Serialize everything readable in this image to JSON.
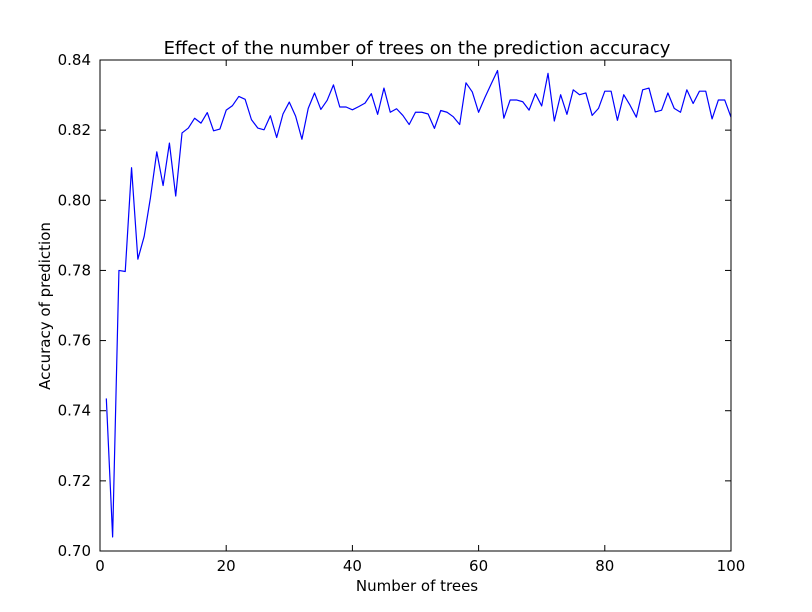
{
  "chart_data": {
    "type": "line",
    "title": "Effect of the number of trees on the prediction accuracy",
    "xlabel": "Number of trees",
    "ylabel": "Accuracy of prediction",
    "xlim": [
      0,
      100
    ],
    "ylim": [
      0.7,
      0.84
    ],
    "xticks": [
      "0",
      "20",
      "40",
      "60",
      "80",
      "100"
    ],
    "yticks": [
      "0.70",
      "0.72",
      "0.74",
      "0.76",
      "0.78",
      "0.80",
      "0.82",
      "0.84"
    ],
    "grid": false,
    "series": [
      {
        "color": "#0000ff",
        "x": [
          1,
          2,
          3,
          4,
          5,
          6,
          7,
          8,
          9,
          10,
          11,
          12,
          13,
          14,
          15,
          16,
          17,
          18,
          19,
          20,
          21,
          22,
          23,
          24,
          25,
          26,
          27,
          28,
          29,
          30,
          31,
          32,
          33,
          34,
          35,
          36,
          37,
          38,
          39,
          40,
          41,
          42,
          43,
          44,
          45,
          46,
          47,
          48,
          49,
          50,
          51,
          52,
          53,
          54,
          55,
          56,
          57,
          58,
          59,
          60,
          61,
          62,
          63,
          64,
          65,
          66,
          67,
          68,
          69,
          70,
          71,
          72,
          73,
          74,
          75,
          76,
          77,
          78,
          79,
          80,
          81,
          82,
          83,
          84,
          85,
          86,
          87,
          88,
          89,
          90,
          91,
          92,
          93,
          94,
          95,
          96,
          97,
          98,
          99,
          100
        ],
        "y": [
          0.7435,
          0.704,
          0.78,
          0.7797,
          0.8093,
          0.7832,
          0.7897,
          0.8008,
          0.8138,
          0.8042,
          0.8163,
          0.8012,
          0.8192,
          0.8206,
          0.8234,
          0.822,
          0.825,
          0.8198,
          0.8203,
          0.8257,
          0.827,
          0.8296,
          0.8288,
          0.823,
          0.8206,
          0.8201,
          0.8241,
          0.8179,
          0.8246,
          0.828,
          0.824,
          0.8174,
          0.8262,
          0.8306,
          0.8259,
          0.8285,
          0.8329,
          0.8266,
          0.8266,
          0.8258,
          0.8267,
          0.8277,
          0.8304,
          0.8245,
          0.832,
          0.8251,
          0.8261,
          0.8242,
          0.8216,
          0.8251,
          0.8251,
          0.8246,
          0.8205,
          0.8256,
          0.8251,
          0.8238,
          0.8216,
          0.8335,
          0.8309,
          0.8251,
          0.8293,
          0.8332,
          0.837,
          0.8234,
          0.8286,
          0.8286,
          0.8281,
          0.8257,
          0.8304,
          0.8269,
          0.8362,
          0.8226,
          0.8301,
          0.8245,
          0.8315,
          0.8301,
          0.8306,
          0.8242,
          0.8262,
          0.8311,
          0.8311,
          0.8228,
          0.8301,
          0.8271,
          0.8237,
          0.8315,
          0.832,
          0.8252,
          0.8257,
          0.8306,
          0.8262,
          0.8251,
          0.8315,
          0.8276,
          0.8311,
          0.8311,
          0.8232,
          0.8286,
          0.8286,
          0.8237
        ]
      }
    ]
  }
}
